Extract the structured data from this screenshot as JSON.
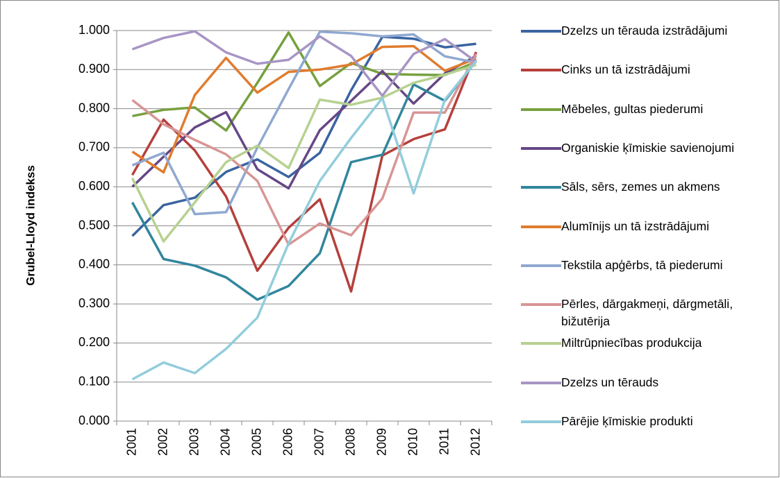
{
  "chart_data": {
    "type": "line",
    "y_label": "Grubel-Lloyd indekss",
    "categories": [
      "2001",
      "2002",
      "2003",
      "2004",
      "2005",
      "2006",
      "2007",
      "2008",
      "2009",
      "2010",
      "2011",
      "2012"
    ],
    "ylim": [
      0,
      1
    ],
    "yticks": [
      {
        "value": 0,
        "label": "0.000"
      },
      {
        "value": 0.1,
        "label": "0.100"
      },
      {
        "value": 0.2,
        "label": "0.200"
      },
      {
        "value": 0.3,
        "label": "0.300"
      },
      {
        "value": 0.4,
        "label": "0.400"
      },
      {
        "value": 0.5,
        "label": "0.500"
      },
      {
        "value": 0.6,
        "label": "0.600"
      },
      {
        "value": 0.7,
        "label": "0.700"
      },
      {
        "value": 0.8,
        "label": "0.800"
      },
      {
        "value": 0.9,
        "label": "0.900"
      },
      {
        "value": 1,
        "label": "1.000"
      }
    ],
    "grid": true,
    "legend": "right",
    "series": [
      {
        "name": "Dzelzs un tērauda izstrādājumi",
        "color": "#3a64a0",
        "values": [
          0.474,
          0.553,
          0.572,
          0.638,
          0.67,
          0.625,
          0.687,
          0.847,
          0.984,
          0.979,
          0.957,
          0.966
        ]
      },
      {
        "name": "Cinks un tā izstrādājumi",
        "color": "#b5403c",
        "values": [
          0.63,
          0.772,
          0.693,
          0.575,
          0.385,
          0.495,
          0.568,
          0.332,
          0.68,
          0.722,
          0.747,
          0.945
        ]
      },
      {
        "name": "Mēbeles, gultas piederumi",
        "color": "#77a03f",
        "values": [
          0.781,
          0.797,
          0.803,
          0.744,
          0.866,
          0.995,
          0.858,
          0.917,
          0.889,
          0.887,
          0.886,
          0.92
        ]
      },
      {
        "name": "Organiskie ķīmiskie savienojumi",
        "color": "#664786",
        "values": [
          0.6,
          0.677,
          0.752,
          0.791,
          0.645,
          0.596,
          0.745,
          0.82,
          0.896,
          0.813,
          0.89,
          0.935
        ]
      },
      {
        "name": "Sāls, sērs, zemes un akmens",
        "color": "#31869c",
        "values": [
          0.56,
          0.415,
          0.398,
          0.368,
          0.311,
          0.346,
          0.43,
          0.663,
          0.682,
          0.862,
          0.82,
          0.922
        ]
      },
      {
        "name": "Alumīnijs un tā izstrādājumi",
        "color": "#e07c2e",
        "values": [
          0.69,
          0.637,
          0.835,
          0.93,
          0.841,
          0.894,
          0.9,
          0.913,
          0.958,
          0.96,
          0.897,
          0.928
        ]
      },
      {
        "name": "Tekstila apģērbs, tā piederumi",
        "color": "#8fa8d0",
        "values": [
          0.655,
          0.687,
          0.53,
          0.535,
          0.7,
          0.85,
          0.997,
          0.993,
          0.985,
          0.99,
          0.934,
          0.918
        ]
      },
      {
        "name": "Pērles, dārgakmeņi, dārgmetāli, bižutērija",
        "color": "#d89594",
        "values": [
          0.822,
          0.76,
          0.72,
          0.683,
          0.615,
          0.452,
          0.506,
          0.476,
          0.57,
          0.79,
          0.79,
          0.94
        ]
      },
      {
        "name": "Miltrūpniecības produkcija",
        "color": "#b7d190",
        "values": [
          0.622,
          0.46,
          0.56,
          0.663,
          0.705,
          0.648,
          0.823,
          0.81,
          0.828,
          0.866,
          0.887,
          0.912
        ]
      },
      {
        "name": "Dzelzs un tērauds",
        "color": "#a795c4",
        "values": [
          0.952,
          0.981,
          0.998,
          0.944,
          0.915,
          0.925,
          0.985,
          0.935,
          0.833,
          0.94,
          0.978,
          0.92
        ]
      },
      {
        "name": "Pārējie ķīmiskie produkti",
        "color": "#92cddc",
        "values": [
          0.107,
          0.15,
          0.123,
          0.185,
          0.265,
          0.455,
          0.615,
          0.725,
          0.827,
          0.583,
          0.823,
          0.922
        ]
      }
    ]
  }
}
